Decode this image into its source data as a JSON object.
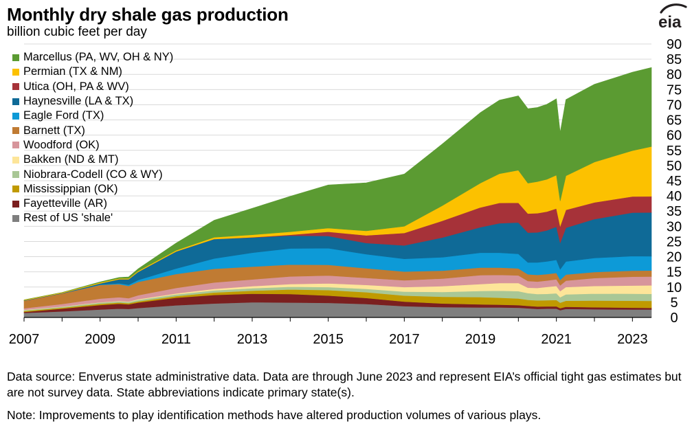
{
  "header": {
    "title": "Monthly dry shale gas production",
    "subtitle": "billion cubic feet per day",
    "logo_text": "eia"
  },
  "footer": {
    "source": "Data source: Enverus state administrative data. Data are through June 2023 and represent EIA’s official tight gas estimates but are not survey data. State abbreviations indicate primary state(s).",
    "note": "Note: Improvements to play identification methods have altered production volumes of various plays."
  },
  "colors": {
    "gridline": "#d9d9d9",
    "axis": "#000000",
    "logo": "#231f20"
  },
  "chart_data": {
    "type": "area",
    "stacked": true,
    "title": "Monthly dry shale gas production",
    "ylabel": "billion cubic feet per day",
    "xlabel": "",
    "x": [
      2007.0,
      2008.0,
      2009.0,
      2009.5,
      2009.75,
      2010.0,
      2011.0,
      2012.0,
      2013.0,
      2014.0,
      2015.0,
      2016.0,
      2017.0,
      2018.0,
      2019.0,
      2019.5,
      2020.0,
      2020.25,
      2020.5,
      2020.75,
      2021.0,
      2021.1,
      2021.25,
      2022.0,
      2023.0,
      2023.5
    ],
    "xlim": [
      2007,
      2023.5
    ],
    "xticks": [
      "2007",
      "2009",
      "2011",
      "2013",
      "2015",
      "2017",
      "2019",
      "2021",
      "2023"
    ],
    "xtick_values": [
      2007,
      2009,
      2011,
      2013,
      2015,
      2017,
      2019,
      2021,
      2023
    ],
    "ylim": [
      0,
      90
    ],
    "yticks": [
      "0",
      "5",
      "10",
      "15",
      "20",
      "25",
      "30",
      "35",
      "40",
      "45",
      "50",
      "55",
      "60",
      "65",
      "70",
      "75",
      "80",
      "85",
      "90"
    ],
    "grid": true,
    "y_axis_position": "right",
    "legend_position": "top-left",
    "series": [
      {
        "name": "Rest of US 'shale'",
        "color": "#7f7f7f",
        "values": [
          1.5,
          2.0,
          2.6,
          2.9,
          2.8,
          3.1,
          4.0,
          4.6,
          5.0,
          4.9,
          4.8,
          4.4,
          3.7,
          3.4,
          3.3,
          3.3,
          3.2,
          3.0,
          2.8,
          2.9,
          2.9,
          2.4,
          2.8,
          2.7,
          2.6,
          2.6
        ]
      },
      {
        "name": "Fayetteville (AR)",
        "color": "#7b1f1f",
        "values": [
          0.3,
          0.9,
          1.5,
          1.6,
          1.5,
          1.8,
          2.5,
          2.8,
          2.8,
          2.8,
          2.4,
          2.0,
          1.5,
          1.2,
          1.0,
          0.9,
          0.85,
          0.8,
          0.8,
          0.75,
          0.75,
          0.65,
          0.7,
          0.65,
          0.6,
          0.55
        ]
      },
      {
        "name": "Mississippian (OK)",
        "color": "#c09a00",
        "values": [
          0.3,
          0.3,
          0.4,
          0.4,
          0.4,
          0.4,
          0.5,
          0.8,
          1.0,
          1.5,
          1.8,
          1.9,
          2.0,
          2.2,
          2.4,
          2.3,
          2.2,
          2.0,
          2.0,
          2.0,
          2.1,
          1.8,
          2.0,
          2.2,
          2.3,
          2.3
        ]
      },
      {
        "name": "Niobrara-Codell (CO & WY)",
        "color": "#a9c796",
        "values": [
          0.3,
          0.3,
          0.4,
          0.4,
          0.4,
          0.5,
          0.6,
          0.7,
          0.8,
          0.9,
          1.0,
          1.1,
          1.3,
          1.6,
          2.0,
          2.3,
          2.4,
          2.2,
          2.1,
          2.1,
          2.2,
          1.8,
          2.1,
          2.3,
          2.3,
          2.3
        ]
      },
      {
        "name": "Bakken (ND & MT)",
        "color": "#fde599",
        "values": [
          0.1,
          0.1,
          0.1,
          0.15,
          0.15,
          0.2,
          0.3,
          0.5,
          0.7,
          0.9,
          1.2,
          1.3,
          1.5,
          1.9,
          2.3,
          2.5,
          2.7,
          1.8,
          2.0,
          2.3,
          2.4,
          2.0,
          2.4,
          2.5,
          2.7,
          2.8
        ]
      },
      {
        "name": "Woodford (OK)",
        "color": "#d7959b",
        "values": [
          0.5,
          0.8,
          1.2,
          1.2,
          1.1,
          1.3,
          1.8,
          2.1,
          2.2,
          2.5,
          2.6,
          2.3,
          2.2,
          2.5,
          2.9,
          2.7,
          2.5,
          2.2,
          2.1,
          2.1,
          2.2,
          1.9,
          2.1,
          2.6,
          2.9,
          2.9
        ]
      },
      {
        "name": "Barnett (TX)",
        "color": "#c07b33",
        "values": [
          2.5,
          3.5,
          4.5,
          4.3,
          4.0,
          4.4,
          4.6,
          4.5,
          4.2,
          3.9,
          3.5,
          3.2,
          2.9,
          2.6,
          2.5,
          2.4,
          2.3,
          2.2,
          2.2,
          2.1,
          2.1,
          1.8,
          2.0,
          2.0,
          2.0,
          2.0
        ]
      },
      {
        "name": "Eagle Ford (TX)",
        "color": "#0d9ad7",
        "values": [
          0.0,
          0.0,
          0.1,
          0.3,
          0.4,
          0.6,
          1.8,
          3.4,
          4.6,
          5.3,
          5.5,
          4.6,
          4.2,
          4.4,
          4.9,
          4.9,
          4.8,
          3.9,
          4.1,
          4.2,
          4.3,
          3.5,
          4.3,
          4.6,
          4.8,
          4.7
        ]
      },
      {
        "name": "Haynesville (LA & TX)",
        "color": "#0f6a97",
        "values": [
          0.1,
          0.1,
          0.4,
          1.3,
          1.8,
          2.7,
          5.6,
          6.4,
          5.0,
          4.2,
          4.0,
          3.7,
          4.4,
          6.5,
          8.4,
          9.7,
          10.3,
          9.8,
          9.9,
          10.2,
          10.9,
          8.7,
          11.1,
          12.8,
          14.3,
          14.4
        ]
      },
      {
        "name": "Utica (OH, PA & WV)",
        "color": "#a63239",
        "values": [
          0.0,
          0.0,
          0.0,
          0.0,
          0.0,
          0.0,
          0.0,
          0.0,
          0.1,
          0.3,
          1.4,
          2.5,
          4.1,
          5.5,
          6.5,
          6.7,
          6.5,
          6.3,
          6.3,
          6.2,
          6.0,
          5.5,
          5.9,
          5.5,
          5.3,
          5.3
        ]
      },
      {
        "name": "Permian (TX & NM)",
        "color": "#fcc100",
        "values": [
          0.2,
          0.2,
          0.3,
          0.3,
          0.3,
          0.3,
          0.4,
          0.6,
          0.8,
          1.0,
          1.2,
          1.5,
          2.2,
          5.0,
          8.0,
          9.6,
          10.7,
          10.0,
          10.4,
          10.6,
          11.0,
          8.3,
          11.2,
          13.3,
          15.1,
          16.4
        ]
      },
      {
        "name": "Marcellus (PA, WV, OH & NY)",
        "color": "#5b9b32",
        "values": [
          0.0,
          0.0,
          0.2,
          0.3,
          0.5,
          0.7,
          2.4,
          5.6,
          8.7,
          11.7,
          14.2,
          15.8,
          17.2,
          20.3,
          23.2,
          24.2,
          24.5,
          24.5,
          24.4,
          24.7,
          25.1,
          22.6,
          25.1,
          25.6,
          25.8,
          26.0
        ]
      }
    ]
  }
}
